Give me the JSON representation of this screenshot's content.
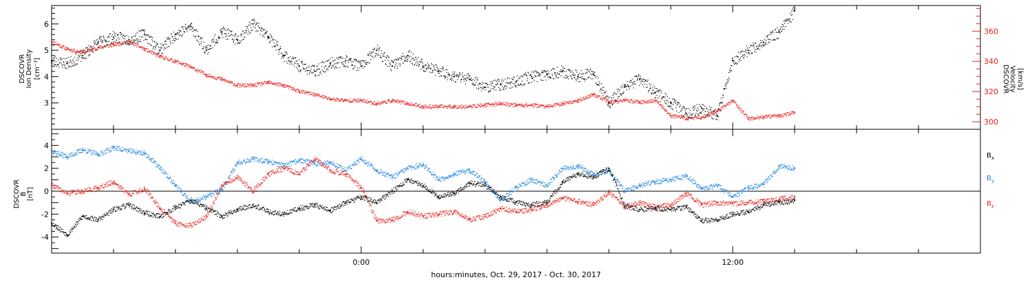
{
  "colors": {
    "black": "#000000",
    "red": "#e8201c",
    "blue": "#1a80e0"
  },
  "x_axis": {
    "label": "hours:minutes, Oct. 29, 2017 - Oct. 30, 2017",
    "ticks": [
      {
        "h": 0,
        "label": "0:00"
      },
      {
        "h": 12,
        "label": "12:00"
      }
    ],
    "range_hours": [
      -10,
      20
    ],
    "minor_step_hours": 2
  },
  "panel1": {
    "left_title": [
      "DSCOVR",
      "Ion Density",
      "[cm⁻³]"
    ],
    "right_title": [
      "DSCOVR",
      "Velocity",
      "[km/s]"
    ],
    "left_ticks": [
      "3",
      "4",
      "5",
      "6"
    ],
    "right_ticks": [
      "300",
      "320",
      "340",
      "360"
    ],
    "ylim_left": [
      2.0,
      6.7
    ],
    "ylim_right": [
      295,
      377
    ],
    "right_color": "red"
  },
  "panel2": {
    "left_title": [
      "DSCOVR",
      "B",
      "[nT]"
    ],
    "left_ticks": [
      "-4",
      "-2",
      "0",
      "2",
      "4"
    ],
    "ylim": [
      -5.4,
      5.4
    ],
    "zero_line": true,
    "legend": [
      {
        "text": "Bx",
        "base": "B",
        "sub": "x",
        "color": "black"
      },
      {
        "text": "By",
        "base": "B",
        "sub": "y",
        "color": "blue"
      },
      {
        "text": "Bz",
        "base": "B",
        "sub": "z",
        "color": "red"
      }
    ]
  },
  "chart_data": [
    {
      "type": "line",
      "title": "",
      "xlabel": "hours:minutes, Oct. 29, 2017 - Oct. 30, 2017",
      "ylabel": "DSCOVR Ion Density [cm⁻³]",
      "y2label": "DSCOVR Velocity [km/s]",
      "xlim_hours": [
        -10,
        20
      ],
      "ylim": [
        2.0,
        6.7
      ],
      "y2lim": [
        295,
        377
      ],
      "series": [
        {
          "name": "Ion Density",
          "axis": "left",
          "color": "black",
          "x": [
            -10.0,
            -9.5,
            -9.0,
            -8.5,
            -8.0,
            -7.5,
            -7.0,
            -6.5,
            -6.0,
            -5.5,
            -5.0,
            -4.5,
            -4.0,
            -3.5,
            -3.0,
            -2.5,
            -2.0,
            -1.5,
            -1.0,
            -0.5,
            0.0,
            0.5,
            1.0,
            1.5,
            2.0,
            2.5,
            3.0,
            3.5,
            4.0,
            4.5,
            5.0,
            5.5,
            6.0,
            6.5,
            7.0,
            7.5,
            8.0,
            8.5,
            9.0,
            9.5,
            10.0,
            10.5,
            11.0,
            11.5,
            12.0,
            12.5,
            13.0,
            13.5,
            14.0
          ],
          "y": [
            4.6,
            4.5,
            4.8,
            5.3,
            5.5,
            5.4,
            5.6,
            5.0,
            5.6,
            5.9,
            5.0,
            5.7,
            5.4,
            6.0,
            5.5,
            4.8,
            4.4,
            4.2,
            4.5,
            4.6,
            4.4,
            5.0,
            4.4,
            4.8,
            4.4,
            4.2,
            4.0,
            3.9,
            3.6,
            3.7,
            3.8,
            4.0,
            4.1,
            4.2,
            4.0,
            4.1,
            3.0,
            3.6,
            3.9,
            3.4,
            3.0,
            2.6,
            2.8,
            2.5,
            4.6,
            5.0,
            5.3,
            5.7,
            6.5
          ]
        },
        {
          "name": "Velocity",
          "axis": "right",
          "color": "red",
          "x": [
            -10.0,
            -9.5,
            -9.0,
            -8.5,
            -8.0,
            -7.5,
            -7.0,
            -6.5,
            -6.0,
            -5.5,
            -5.0,
            -4.5,
            -4.0,
            -3.5,
            -3.0,
            -2.5,
            -2.0,
            -1.5,
            -1.0,
            -0.5,
            0.0,
            0.5,
            1.0,
            1.5,
            2.0,
            2.5,
            3.0,
            3.5,
            4.0,
            4.5,
            5.0,
            5.5,
            6.0,
            6.5,
            7.0,
            7.5,
            8.0,
            8.5,
            9.0,
            9.5,
            10.0,
            10.5,
            11.0,
            11.5,
            12.0,
            12.5,
            13.0,
            13.5,
            14.0
          ],
          "y": [
            353,
            348,
            346,
            349,
            351,
            353,
            348,
            343,
            340,
            336,
            331,
            328,
            324,
            324,
            326,
            324,
            320,
            318,
            315,
            314,
            314,
            312,
            314,
            312,
            310,
            310,
            310,
            310,
            311,
            312,
            311,
            311,
            310,
            312,
            314,
            318,
            313,
            314,
            313,
            314,
            304,
            302,
            303,
            307,
            314,
            302,
            303,
            304,
            306
          ]
        }
      ]
    },
    {
      "type": "line",
      "title": "",
      "xlabel": "hours:minutes, Oct. 29, 2017 - Oct. 30, 2017",
      "ylabel": "DSCOVR B [nT]",
      "xlim_hours": [
        -10,
        20
      ],
      "ylim": [
        -5.4,
        5.4
      ],
      "series": [
        {
          "name": "Bx",
          "color": "black",
          "x": [
            -10.0,
            -9.5,
            -9.0,
            -8.5,
            -8.0,
            -7.5,
            -7.0,
            -6.5,
            -6.0,
            -5.5,
            -5.0,
            -4.5,
            -4.0,
            -3.5,
            -3.0,
            -2.5,
            -2.0,
            -1.5,
            -1.0,
            -0.5,
            0.0,
            0.5,
            1.0,
            1.5,
            2.0,
            2.5,
            3.0,
            3.5,
            4.0,
            4.5,
            5.0,
            5.5,
            6.0,
            6.5,
            7.0,
            7.5,
            8.0,
            8.5,
            9.0,
            9.5,
            10.0,
            10.5,
            11.0,
            11.5,
            12.0,
            12.5,
            13.0,
            13.5,
            14.0
          ],
          "y": [
            -2.8,
            -3.8,
            -2.2,
            -2.5,
            -1.6,
            -1.2,
            -1.9,
            -2.2,
            -1.4,
            -0.8,
            -1.5,
            -2.2,
            -1.6,
            -1.2,
            -1.8,
            -2.0,
            -1.5,
            -1.2,
            -1.7,
            -1.0,
            -0.5,
            -1.0,
            0.0,
            1.0,
            0.5,
            -0.5,
            -0.2,
            0.7,
            0.5,
            -0.5,
            -1.0,
            -1.2,
            -1.0,
            0.8,
            1.5,
            1.2,
            2.0,
            -1.3,
            -1.6,
            -1.5,
            -1.6,
            -1.4,
            -2.6,
            -2.5,
            -2.0,
            -1.8,
            -1.2,
            -1.0,
            -0.8
          ]
        },
        {
          "name": "By",
          "color": "blue",
          "x": [
            -10.0,
            -9.5,
            -9.0,
            -8.5,
            -8.0,
            -7.5,
            -7.0,
            -6.5,
            -6.0,
            -5.5,
            -5.0,
            -4.5,
            -4.0,
            -3.5,
            -3.0,
            -2.5,
            -2.0,
            -1.5,
            -1.0,
            -0.5,
            0.0,
            0.5,
            1.0,
            1.5,
            2.0,
            2.5,
            3.0,
            3.5,
            4.0,
            4.5,
            5.0,
            5.5,
            6.0,
            6.5,
            7.0,
            7.5,
            8.0,
            8.5,
            9.0,
            9.5,
            10.0,
            10.5,
            11.0,
            11.5,
            12.0,
            12.5,
            13.0,
            13.5,
            14.0
          ],
          "y": [
            3.5,
            3.0,
            3.6,
            3.2,
            3.8,
            3.5,
            3.3,
            2.0,
            0.5,
            -1.0,
            -0.5,
            0.2,
            2.5,
            2.8,
            2.6,
            2.2,
            2.7,
            2.4,
            2.5,
            1.8,
            2.8,
            1.8,
            1.2,
            2.0,
            2.3,
            1.0,
            1.5,
            1.8,
            0.8,
            -0.8,
            0.3,
            1.0,
            0.5,
            2.0,
            2.2,
            1.5,
            1.8,
            0.0,
            0.5,
            0.8,
            1.0,
            1.3,
            0.2,
            0.5,
            -0.5,
            0.3,
            0.6,
            2.2,
            2.0
          ]
        },
        {
          "name": "Bz",
          "color": "red",
          "x": [
            -10.0,
            -9.5,
            -9.0,
            -8.5,
            -8.0,
            -7.5,
            -7.0,
            -6.5,
            -6.0,
            -5.5,
            -5.0,
            -4.5,
            -4.0,
            -3.5,
            -3.0,
            -2.5,
            -2.0,
            -1.5,
            -1.0,
            -0.5,
            0.0,
            0.5,
            1.0,
            1.5,
            2.0,
            2.5,
            3.0,
            3.5,
            4.0,
            4.5,
            5.0,
            5.5,
            6.0,
            6.5,
            7.0,
            7.5,
            8.0,
            8.5,
            9.0,
            9.5,
            10.0,
            10.5,
            11.0,
            11.5,
            12.0,
            12.5,
            13.0,
            13.5,
            14.0
          ],
          "y": [
            0.5,
            -0.2,
            0.0,
            0.3,
            0.8,
            -0.3,
            0.2,
            -1.5,
            -2.8,
            -3.0,
            -2.2,
            0.5,
            1.2,
            0.0,
            1.5,
            2.0,
            1.5,
            2.8,
            1.8,
            1.5,
            0.3,
            -2.6,
            -2.5,
            -1.8,
            -2.2,
            -2.0,
            -1.8,
            -2.5,
            -2.2,
            -1.5,
            -1.8,
            -1.6,
            -1.2,
            -0.6,
            -0.9,
            -1.2,
            -0.1,
            -1.4,
            -1.0,
            -1.4,
            -1.2,
            -0.2,
            -1.2,
            -1.0,
            -1.1,
            -1.0,
            -0.9,
            -0.7,
            -0.5
          ]
        }
      ]
    }
  ]
}
